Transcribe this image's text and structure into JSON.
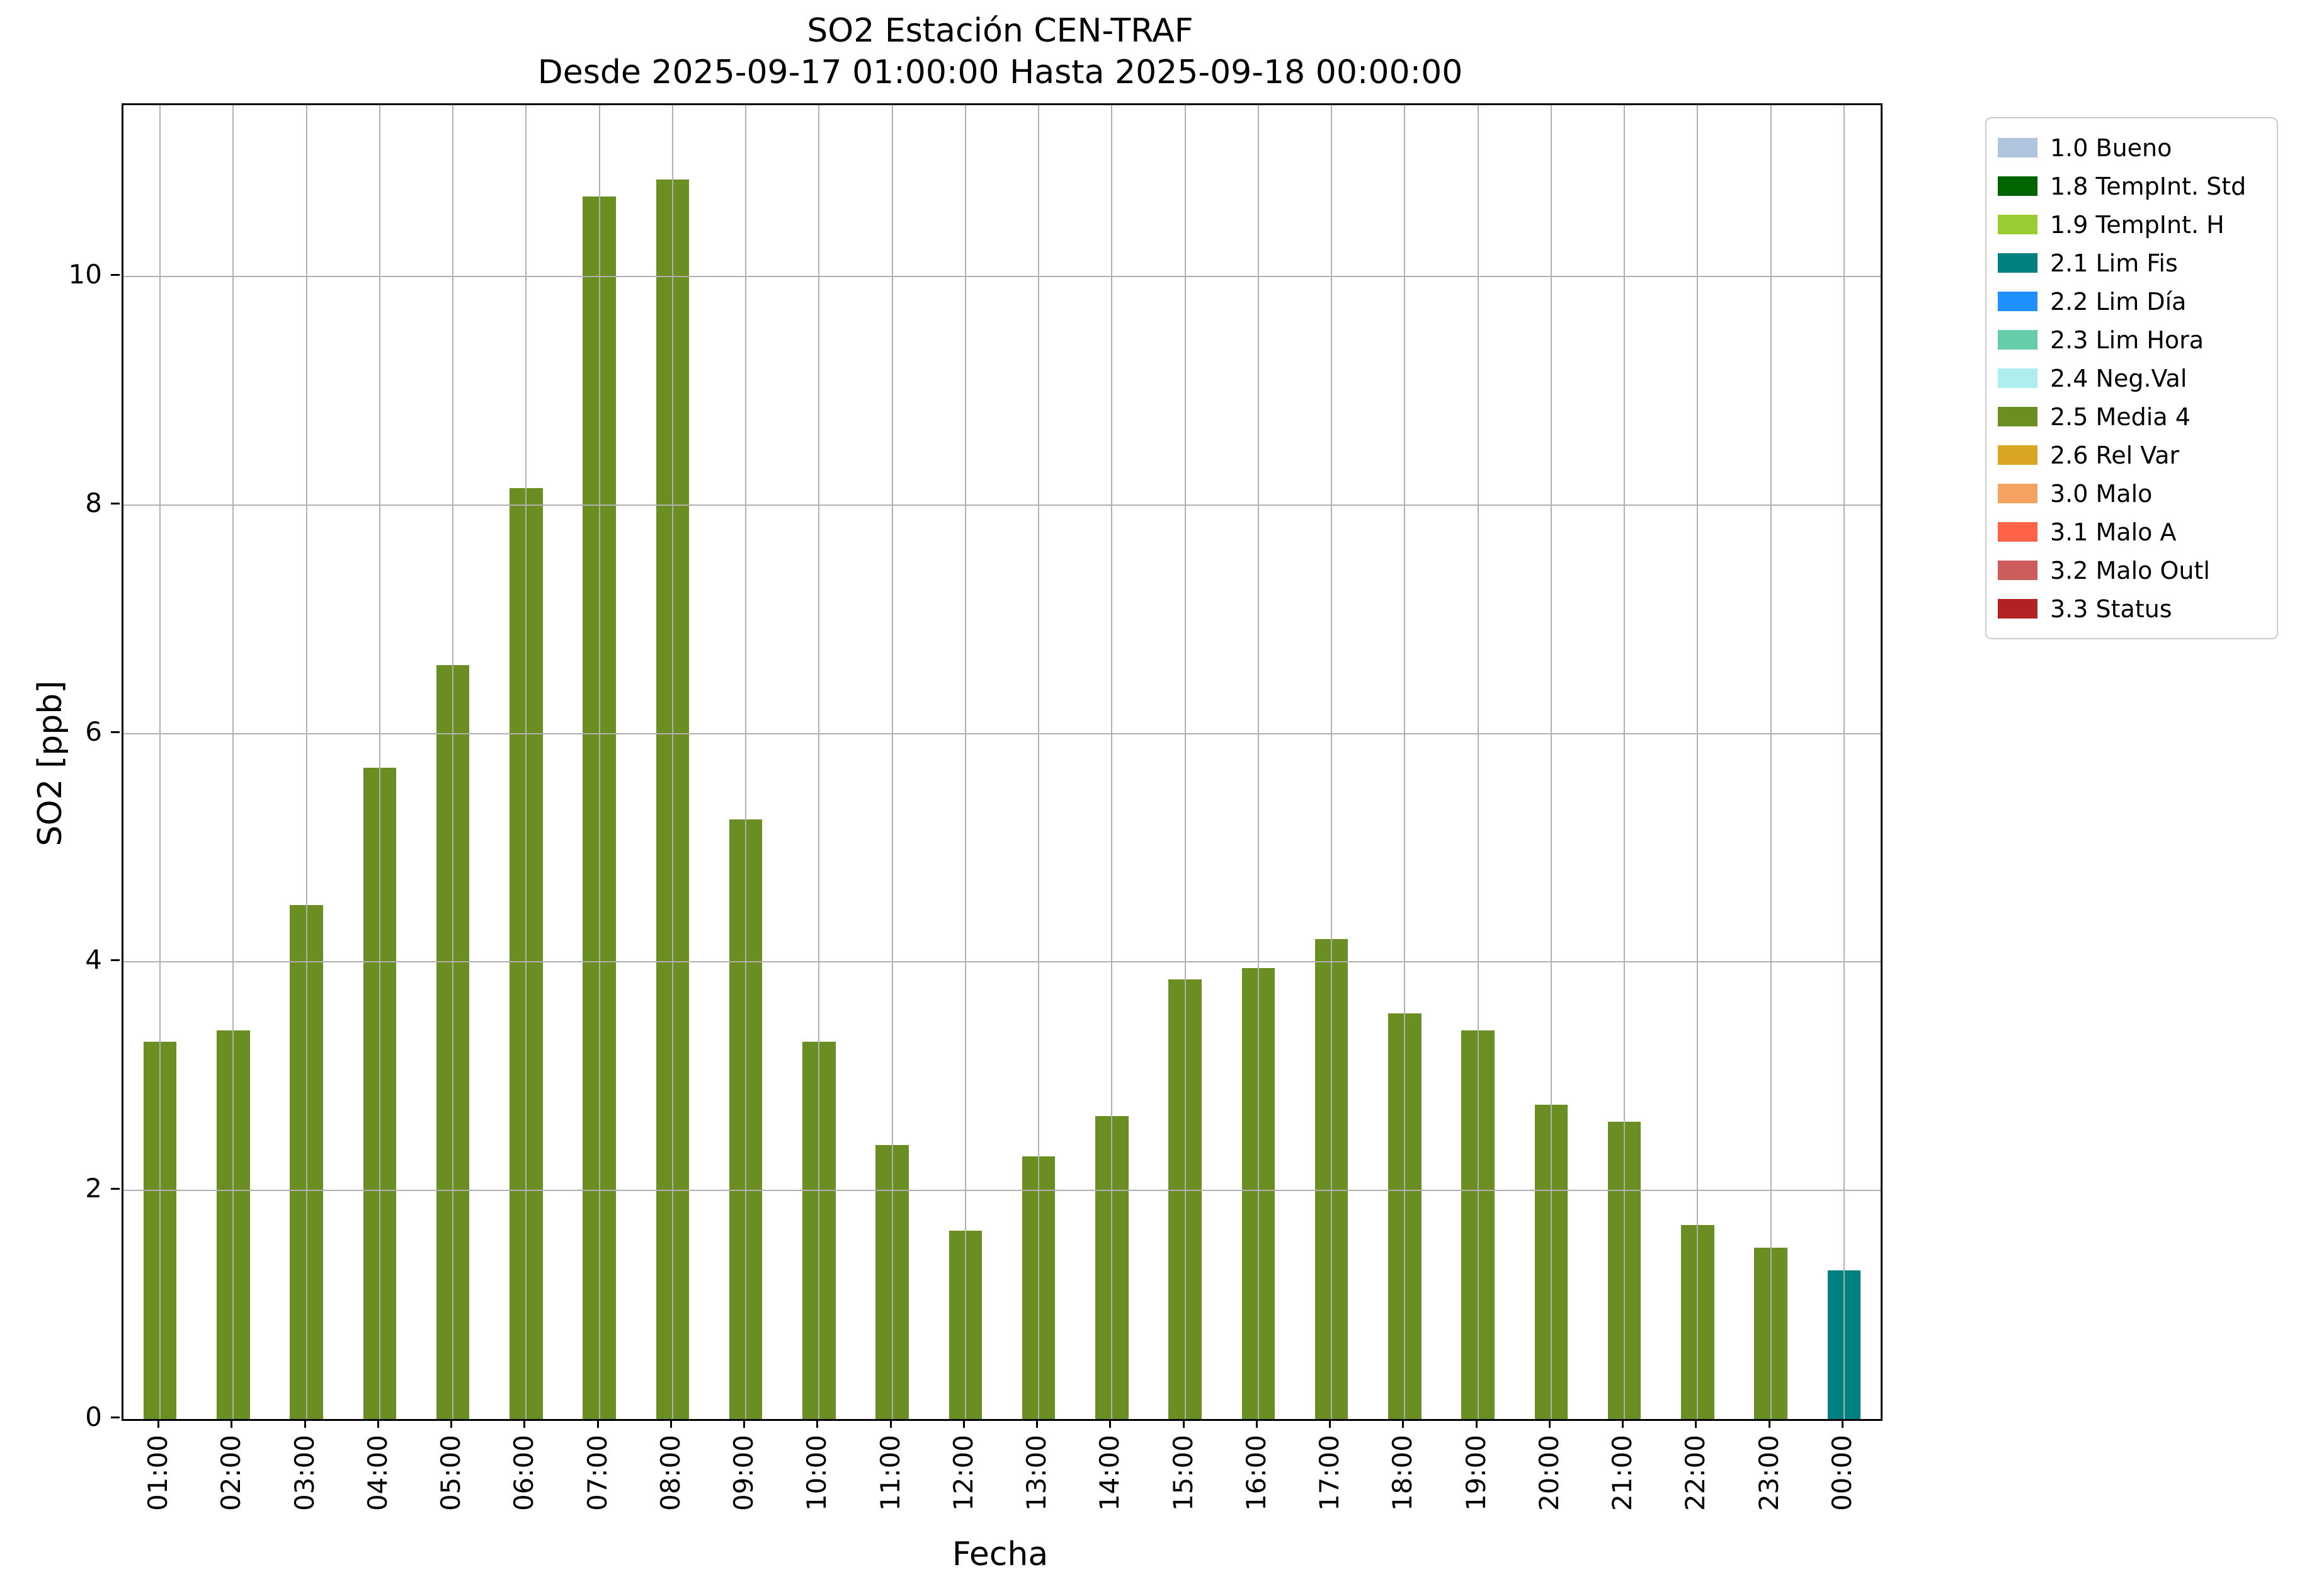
{
  "chart_data": {
    "type": "bar",
    "title": "SO2 Estación CEN-TRAF",
    "subtitle": "Desde 2025-09-17 01:00:00 Hasta 2025-09-18 00:00:00",
    "xlabel": "Fecha",
    "ylabel": "SO2 [ppb]",
    "categories": [
      "01:00",
      "02:00",
      "03:00",
      "04:00",
      "05:00",
      "06:00",
      "07:00",
      "08:00",
      "09:00",
      "10:00",
      "11:00",
      "12:00",
      "13:00",
      "14:00",
      "15:00",
      "16:00",
      "17:00",
      "18:00",
      "19:00",
      "20:00",
      "21:00",
      "22:00",
      "23:00",
      "00:00"
    ],
    "values": [
      3.3,
      3.4,
      4.5,
      5.7,
      6.6,
      8.15,
      10.7,
      10.85,
      5.25,
      3.3,
      2.4,
      1.65,
      2.3,
      2.65,
      3.85,
      3.95,
      4.2,
      3.55,
      3.4,
      2.75,
      2.6,
      1.7,
      1.5,
      1.3
    ],
    "bar_colors": [
      "#6B8E23",
      "#6B8E23",
      "#6B8E23",
      "#6B8E23",
      "#6B8E23",
      "#6B8E23",
      "#6B8E23",
      "#6B8E23",
      "#6B8E23",
      "#6B8E23",
      "#6B8E23",
      "#6B8E23",
      "#6B8E23",
      "#6B8E23",
      "#6B8E23",
      "#6B8E23",
      "#6B8E23",
      "#6B8E23",
      "#6B8E23",
      "#6B8E23",
      "#6B8E23",
      "#6B8E23",
      "#6B8E23",
      "#008080"
    ],
    "default_bar_color": "#6B8E23",
    "ylim": [
      0,
      11.5
    ],
    "yticks": [
      0,
      2,
      4,
      6,
      8,
      10
    ],
    "grid": true,
    "grid_color": "#b0b0b0",
    "grid_above_bars": true,
    "legend_position": "outside-upper-right",
    "legend": [
      {
        "label": "1.0 Bueno",
        "color": "#B0C4DE"
      },
      {
        "label": "1.8 TempInt. Std",
        "color": "#006400"
      },
      {
        "label": "1.9 TempInt. H",
        "color": "#9ACD32"
      },
      {
        "label": "2.1 Lim Fis",
        "color": "#008080"
      },
      {
        "label": "2.2 Lim Día",
        "color": "#1E90FF"
      },
      {
        "label": "2.3 Lim Hora",
        "color": "#66CDAA"
      },
      {
        "label": "2.4 Neg.Val",
        "color": "#AFEEEE"
      },
      {
        "label": "2.5 Media 4",
        "color": "#6B8E23"
      },
      {
        "label": "2.6 Rel Var",
        "color": "#DAA520"
      },
      {
        "label": "3.0 Malo",
        "color": "#F4A460"
      },
      {
        "label": "3.1 Malo A",
        "color": "#FF6347"
      },
      {
        "label": "3.2 Malo Outl",
        "color": "#CD5C5C"
      },
      {
        "label": "3.3 Status",
        "color": "#B22222"
      }
    ]
  }
}
